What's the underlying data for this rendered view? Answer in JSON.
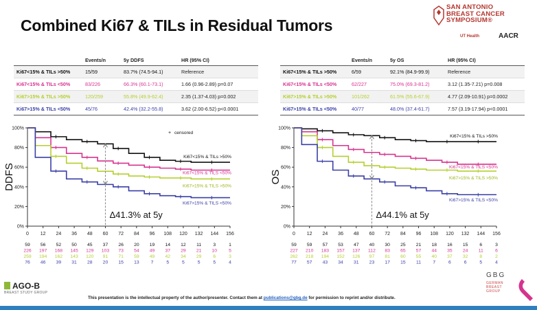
{
  "slide": {
    "title": "Combined Ki67 & TILs in Residual Tumors",
    "footer_prefix": "This presentation is the intellectual property of the author/presenter. Contact them at ",
    "footer_email": "publications@gbg.de",
    "footer_suffix": " for permission to reprint and/or distribute.",
    "logo_left": "AGO-B",
    "logo_left_sub": "BREAST STUDY GROUP",
    "logo_right": "GBG",
    "logo_right_sub": [
      "GERMAN",
      "BREAST",
      "GROUP"
    ],
    "sabcs_lines": [
      "SAN ANTONIO",
      "BREAST CANCER",
      "SYMPOSIUM®"
    ],
    "ut_health": "UT Health",
    "aacr": "AACR"
  },
  "colors": {
    "black": "#111111",
    "magenta": "#d6338f",
    "lime": "#b4cf2e",
    "navy": "#3a3fa6",
    "footer": "#2d7fbf"
  },
  "tables": [
    {
      "headers": [
        "",
        "Events/n",
        "5y DDFS",
        "HR (95% CI)"
      ],
      "rows": [
        [
          "Ki67<15% & TILs >50%",
          "15/59",
          "83.7% (74.5-94.1)",
          "Reference"
        ],
        [
          "Ki67<15% & TILs <50%",
          "83/226",
          "66.3% (60.1-73.1)",
          "1.66 (0.96-2.89) p=0.07"
        ],
        [
          "Ki67>15% & TILs >50%",
          "120/259",
          "55.8% (49.9-62.4)",
          "2.35 (1.37-4.03) p=0.002"
        ],
        [
          "Ki67>15% & TILs <50%",
          "45/76",
          "42.4% (32.2-55.8)",
          "3.62 (2.00-6.52) p<0.0001"
        ]
      ]
    },
    {
      "headers": [
        "",
        "Events/n",
        "5y OS",
        "HR (95% CI)"
      ],
      "rows": [
        [
          "Ki67<15% & TILs >50%",
          "6/59",
          "92.1% (84.9-99.9)",
          "Reference"
        ],
        [
          "Ki67<15% & TILs <50%",
          "62/227",
          "75.0% (69.3-81.2)",
          "3.12 (1.35-7.21) p=0.008"
        ],
        [
          "Ki67>15% & TILs >50%",
          "101/262",
          "61.5% (55.6-67.9)",
          "4.77 (2.09-10.91) p=0.0002"
        ],
        [
          "Ki67>15% & TILs <50%",
          "40/77",
          "48.0% (37.4-61.7)",
          "7.57 (3.19-17.94) p<0.0001"
        ]
      ]
    }
  ],
  "chart_data": [
    {
      "type": "line",
      "title": "",
      "ylabel": "DDFS",
      "xlabel": "",
      "x_ticks": [
        0,
        12,
        24,
        36,
        48,
        60,
        72,
        84,
        96,
        108,
        120,
        132,
        144,
        156
      ],
      "y_ticks": [
        "0%",
        "20%",
        "40%",
        "60%",
        "80%",
        "100%"
      ],
      "xlim": [
        0,
        156
      ],
      "ylim": [
        0,
        100
      ],
      "legend": "censored",
      "annotation": "Δ41.3% at 5y",
      "annotation_x": 60,
      "annotation_y_range": [
        42.4,
        83.7
      ],
      "series": [
        {
          "name": "Ki67<15% & TILs >50%",
          "color": "#111111",
          "x": [
            0,
            12,
            24,
            36,
            48,
            60,
            72,
            84,
            96,
            108,
            120,
            132,
            144,
            156
          ],
          "y": [
            100,
            96,
            91,
            88,
            86,
            83.7,
            79,
            74,
            70,
            67,
            66,
            65,
            65,
            65
          ]
        },
        {
          "name": "Ki67<15% & TILS <50%",
          "color": "#d6338f",
          "x": [
            0,
            12,
            24,
            36,
            48,
            60,
            72,
            84,
            96,
            108,
            120,
            132,
            144,
            156
          ],
          "y": [
            100,
            90,
            80,
            74,
            70,
            66.3,
            64,
            62,
            60,
            59,
            58,
            57,
            57,
            57
          ]
        },
        {
          "name": "Ki67>15% & TILS >50%",
          "color": "#b4cf2e",
          "x": [
            0,
            12,
            24,
            36,
            48,
            60,
            72,
            84,
            96,
            108,
            120,
            132,
            144,
            156
          ],
          "y": [
            100,
            82,
            71,
            64,
            59,
            55.8,
            53,
            51,
            50,
            49,
            49,
            48,
            48,
            48
          ]
        },
        {
          "name": "Ki67>15% & TILS <50%",
          "color": "#3a3fa6",
          "x": [
            0,
            12,
            24,
            36,
            48,
            60,
            72,
            84,
            96,
            108,
            120,
            132,
            144,
            156
          ],
          "y": [
            100,
            70,
            56,
            48,
            45,
            42.4,
            40,
            36,
            33,
            31,
            30,
            29,
            29,
            29
          ]
        }
      ],
      "risk_table": [
        [
          "59",
          "56",
          "52",
          "50",
          "45",
          "37",
          "26",
          "20",
          "19",
          "14",
          "12",
          "11",
          "3",
          "1"
        ],
        [
          "226",
          "197",
          "168",
          "145",
          "129",
          "103",
          "73",
          "54",
          "49",
          "37",
          "29",
          "21",
          "10",
          "5"
        ],
        [
          "259",
          "194",
          "162",
          "143",
          "120",
          "91",
          "71",
          "59",
          "49",
          "42",
          "34",
          "29",
          "6",
          "3"
        ],
        [
          "76",
          "46",
          "39",
          "31",
          "28",
          "20",
          "15",
          "13",
          "7",
          "5",
          "5",
          "5",
          "5",
          "4"
        ]
      ]
    },
    {
      "type": "line",
      "title": "",
      "ylabel": "OS",
      "xlabel": "",
      "x_ticks": [
        0,
        12,
        24,
        36,
        48,
        60,
        72,
        84,
        96,
        108,
        120,
        132,
        144,
        156
      ],
      "y_ticks": [
        "0%",
        "20%",
        "40%",
        "60%",
        "80%",
        "100%"
      ],
      "xlim": [
        0,
        156
      ],
      "ylim": [
        0,
        100
      ],
      "legend": "",
      "annotation": "Δ44.1% at 5y",
      "annotation_x": 60,
      "annotation_y_range": [
        48.0,
        92.1
      ],
      "series": [
        {
          "name": "Ki67<15% & TILs >50%",
          "color": "#111111",
          "x": [
            0,
            12,
            24,
            36,
            48,
            60,
            72,
            84,
            96,
            108,
            120,
            132,
            144,
            156
          ],
          "y": [
            100,
            99,
            97,
            95,
            93,
            92.1,
            90,
            88,
            87,
            86,
            86,
            86,
            86,
            86
          ]
        },
        {
          "name": "Ki67<15% & TILS <50%",
          "color": "#d6338f",
          "x": [
            0,
            12,
            24,
            36,
            48,
            60,
            72,
            84,
            96,
            108,
            120,
            132,
            144,
            156
          ],
          "y": [
            100,
            96,
            88,
            82,
            78,
            75.0,
            73,
            71,
            69,
            67,
            65,
            63,
            63,
            63
          ]
        },
        {
          "name": "Ki67>15% & TILS >50%",
          "color": "#b4cf2e",
          "x": [
            0,
            12,
            24,
            36,
            48,
            60,
            72,
            84,
            96,
            108,
            120,
            132,
            144,
            156
          ],
          "y": [
            100,
            92,
            80,
            71,
            65,
            61.5,
            60,
            59,
            58,
            57,
            57,
            56,
            56,
            56
          ]
        },
        {
          "name": "Ki67>15% & TILS <50%",
          "color": "#3a3fa6",
          "x": [
            0,
            12,
            24,
            36,
            48,
            60,
            72,
            84,
            96,
            108,
            120,
            132,
            144,
            156
          ],
          "y": [
            100,
            83,
            66,
            57,
            51,
            48.0,
            45,
            41,
            39,
            36,
            33,
            32,
            32,
            32
          ]
        }
      ],
      "risk_table": [
        [
          "59",
          "59",
          "57",
          "53",
          "47",
          "40",
          "30",
          "25",
          "21",
          "18",
          "16",
          "15",
          "6",
          "3"
        ],
        [
          "227",
          "210",
          "183",
          "157",
          "137",
          "112",
          "83",
          "65",
          "57",
          "44",
          "35",
          "24",
          "11",
          "6"
        ],
        [
          "262",
          "218",
          "194",
          "152",
          "126",
          "97",
          "81",
          "60",
          "55",
          "40",
          "37",
          "32",
          "8",
          "2"
        ],
        [
          "77",
          "57",
          "43",
          "34",
          "31",
          "23",
          "17",
          "15",
          "11",
          "7",
          "6",
          "6",
          "5",
          "4"
        ]
      ]
    }
  ]
}
